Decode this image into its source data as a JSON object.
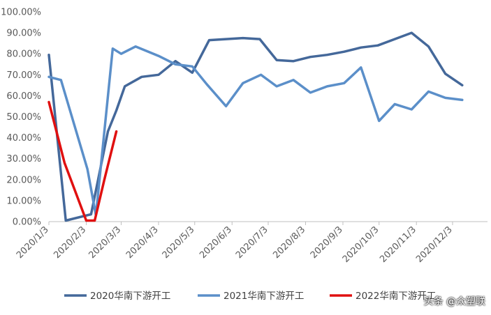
{
  "chart_data": {
    "type": "line",
    "title": "",
    "xlabel": "",
    "ylabel": "",
    "ylim": [
      0,
      100
    ],
    "y_tick_labels": [
      "0.00%",
      "10.00%",
      "20.00%",
      "30.00%",
      "40.00%",
      "50.00%",
      "60.00%",
      "70.00%",
      "80.00%",
      "90.00%",
      "100.00%"
    ],
    "x_tick_labels": [
      "2020/1/3",
      "2020/2/3",
      "2020/3/3",
      "2020/4/3",
      "2020/5/3",
      "2020/6/3",
      "2020/7/3",
      "2020/8/3",
      "2020/9/3",
      "2020/10/3",
      "2020/11/3",
      "2020/12/3"
    ],
    "x_range": [
      "2020-01-03",
      "2021-01-01"
    ],
    "grid": false,
    "legend_position": "bottom",
    "series": [
      {
        "name": "2020华南下游开工",
        "color": "#44689a",
        "points": [
          [
            "2020-01-03",
            79.5
          ],
          [
            "2020-01-17",
            0.5
          ],
          [
            "2020-02-07",
            3.5
          ],
          [
            "2020-02-21",
            43.0
          ],
          [
            "2020-02-28",
            53.0
          ],
          [
            "2020-03-06",
            64.5
          ],
          [
            "2020-03-20",
            69.0
          ],
          [
            "2020-04-03",
            70.0
          ],
          [
            "2020-04-17",
            76.5
          ],
          [
            "2020-05-01",
            71.0
          ],
          [
            "2020-05-15",
            86.5
          ],
          [
            "2020-05-29",
            87.0
          ],
          [
            "2020-06-12",
            87.5
          ],
          [
            "2020-06-26",
            87.0
          ],
          [
            "2020-07-10",
            77.0
          ],
          [
            "2020-07-24",
            76.5
          ],
          [
            "2020-08-07",
            78.5
          ],
          [
            "2020-08-21",
            79.5
          ],
          [
            "2020-09-04",
            81.0
          ],
          [
            "2020-09-18",
            83.0
          ],
          [
            "2020-10-02",
            84.0
          ],
          [
            "2020-10-16",
            87.0
          ],
          [
            "2020-10-30",
            90.0
          ],
          [
            "2020-11-13",
            83.5
          ],
          [
            "2020-11-27",
            70.5
          ],
          [
            "2020-12-11",
            65.0
          ]
        ]
      },
      {
        "name": "2021华南下游开工",
        "color": "#5b8fc9",
        "points": [
          [
            "2020-01-03",
            69.0
          ],
          [
            "2020-01-13",
            67.5
          ],
          [
            "2020-02-04",
            25.0
          ],
          [
            "2020-02-11",
            3.0
          ],
          [
            "2020-02-25",
            82.5
          ],
          [
            "2020-03-03",
            80.0
          ],
          [
            "2020-03-15",
            83.5
          ],
          [
            "2020-04-03",
            79.0
          ],
          [
            "2020-04-17",
            75.0
          ],
          [
            "2020-05-01",
            74.0
          ],
          [
            "2020-05-13",
            65.5
          ],
          [
            "2020-05-29",
            55.0
          ],
          [
            "2020-06-12",
            66.0
          ],
          [
            "2020-06-27",
            70.0
          ],
          [
            "2020-07-10",
            64.5
          ],
          [
            "2020-07-24",
            67.5
          ],
          [
            "2020-08-07",
            61.5
          ],
          [
            "2020-08-21",
            64.5
          ],
          [
            "2020-09-04",
            66.0
          ],
          [
            "2020-09-18",
            73.5
          ],
          [
            "2020-10-03",
            48.0
          ],
          [
            "2020-10-16",
            56.0
          ],
          [
            "2020-10-30",
            53.5
          ],
          [
            "2020-11-13",
            62.0
          ],
          [
            "2020-11-27",
            59.0
          ],
          [
            "2020-12-11",
            58.0
          ]
        ]
      },
      {
        "name": "2022华南下游开工",
        "color": "#e01010",
        "points": [
          [
            "2020-01-03",
            57.0
          ],
          [
            "2020-01-16",
            28.0
          ],
          [
            "2020-02-03",
            0.5
          ],
          [
            "2020-02-10",
            0.5
          ],
          [
            "2020-02-18",
            20.0
          ],
          [
            "2020-02-28",
            43.0
          ]
        ]
      }
    ]
  },
  "watermark": "头条 @众塑联"
}
